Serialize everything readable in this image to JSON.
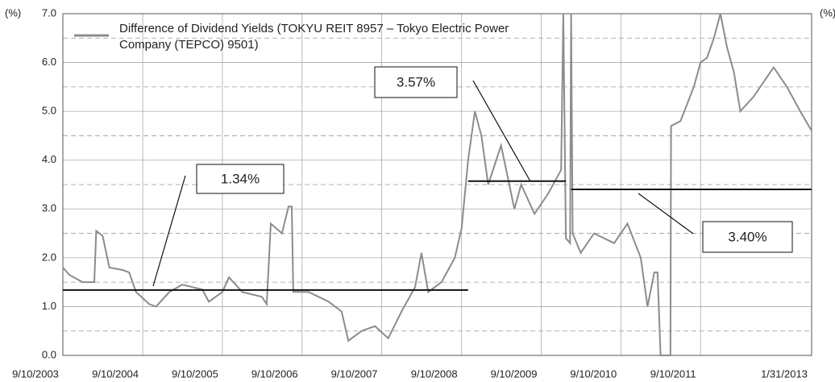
{
  "chart_data": {
    "type": "line",
    "y_unit": "(%)",
    "series": [
      {
        "name": "Difference of Dividend Yields (TOKYU REIT 8957 – Tokyo Electric Power Company (TEPCO) 9501)",
        "color": "#8c8c8c",
        "x": [
          "2003-09-10",
          "2003-10-10",
          "2003-12-10",
          "2004-01-10",
          "2004-02-01",
          "2004-02-10",
          "2004-03-10",
          "2004-04-10",
          "2004-06-10",
          "2004-07-10",
          "2004-08-10",
          "2004-10-10",
          "2004-11-10",
          "2005-01-10",
          "2005-03-10",
          "2005-06-10",
          "2005-07-10",
          "2005-09-10",
          "2005-10-10",
          "2005-12-10",
          "2006-03-10",
          "2006-04-01",
          "2006-04-20",
          "2006-06-10",
          "2006-07-10",
          "2006-07-25",
          "2006-08-01",
          "2006-10-10",
          "2007-01-10",
          "2007-03-10",
          "2007-04-10",
          "2007-06-10",
          "2007-08-10",
          "2007-10-10",
          "2007-12-10",
          "2008-02-10",
          "2008-03-10",
          "2008-04-10",
          "2008-06-10",
          "2008-08-10",
          "2008-09-10",
          "2008-10-10",
          "2008-11-10",
          "2008-12-10",
          "2009-01-10",
          "2009-03-10",
          "2009-05-10",
          "2009-06-10",
          "2009-08-10",
          "2009-10-10",
          "2009-12-10",
          "2009-12-20",
          "2010-01-01",
          "2010-01-20",
          "2010-01-25",
          "2010-02-01",
          "2010-03-10",
          "2010-05-10",
          "2010-08-10",
          "2010-10-10",
          "2010-12-10",
          "2011-01-10",
          "2011-02-10",
          "2011-02-25",
          "2011-03-11",
          "2011-04-25",
          "2011-04-28",
          "2011-06-10",
          "2011-08-10",
          "2011-09-10",
          "2011-10-10",
          "2011-11-10",
          "2011-12-10",
          "2012-01-10",
          "2012-02-10",
          "2012-03-10",
          "2012-05-10",
          "2012-07-10",
          "2012-08-10",
          "2012-10-10",
          "2012-12-10",
          "2013-01-31"
        ],
        "values": [
          1.8,
          1.65,
          1.5,
          1.5,
          1.5,
          2.55,
          2.45,
          1.8,
          1.75,
          1.7,
          1.3,
          1.05,
          1.0,
          1.3,
          1.45,
          1.35,
          1.1,
          1.3,
          1.6,
          1.3,
          1.2,
          1.05,
          2.7,
          2.5,
          3.05,
          3.05,
          1.3,
          1.3,
          1.1,
          0.9,
          0.3,
          0.5,
          0.6,
          0.35,
          0.9,
          1.4,
          2.1,
          1.3,
          1.5,
          2.0,
          2.6,
          4.0,
          5.0,
          4.5,
          3.5,
          4.3,
          3.0,
          3.5,
          2.9,
          3.3,
          3.8,
          7.0,
          2.4,
          2.3,
          7.0,
          2.5,
          2.1,
          2.5,
          2.3,
          2.7,
          2.0,
          1.0,
          1.7,
          1.7,
          0.0,
          0.0,
          4.7,
          4.8,
          5.5,
          6.0,
          6.1,
          6.5,
          7.0,
          6.3,
          5.8,
          5.0,
          5.3,
          5.7,
          5.9,
          5.5,
          5.0,
          4.6
        ]
      }
    ],
    "annotations": [
      {
        "label": "1.34%",
        "value": 1.34,
        "start": "2003-09-10",
        "end": "2008-10-10"
      },
      {
        "label": "3.57%",
        "value": 3.57,
        "start": "2008-10-10",
        "end": "2010-01-01"
      },
      {
        "label": "3.40%",
        "value": 3.4,
        "start": "2010-01-25",
        "end": "2013-01-31"
      }
    ],
    "xlim": [
      "2003-09-10",
      "2013-01-31"
    ],
    "xticks": [
      {
        "value": "2003-09-10",
        "label": "9/10/2003"
      },
      {
        "value": "2004-09-10",
        "label": "9/10/2004"
      },
      {
        "value": "2005-09-10",
        "label": "9/10/2005"
      },
      {
        "value": "2006-09-10",
        "label": "9/10/2006"
      },
      {
        "value": "2007-09-10",
        "label": "9/10/2007"
      },
      {
        "value": "2008-09-10",
        "label": "9/10/2008"
      },
      {
        "value": "2009-09-10",
        "label": "9/10/2009"
      },
      {
        "value": "2010-09-10",
        "label": "9/10/2010"
      },
      {
        "value": "2011-09-10",
        "label": "9/10/2011"
      },
      {
        "value": "2013-01-31",
        "label": "1/31/2013"
      }
    ],
    "ylim": [
      0,
      7
    ],
    "yticks": [
      {
        "value": 0,
        "label": "0.0"
      },
      {
        "value": 1,
        "label": "1.0"
      },
      {
        "value": 2,
        "label": "2.0"
      },
      {
        "value": 3,
        "label": "3.0"
      },
      {
        "value": 4,
        "label": "4.0"
      },
      {
        "value": 5,
        "label": "5.0"
      },
      {
        "value": 6,
        "label": "6.0"
      },
      {
        "value": 7,
        "label": "7.0"
      }
    ],
    "minor_yticks": [
      0.5,
      1.5,
      2.5,
      3.5,
      4.5,
      5.5,
      6.5
    ],
    "grid": true
  }
}
